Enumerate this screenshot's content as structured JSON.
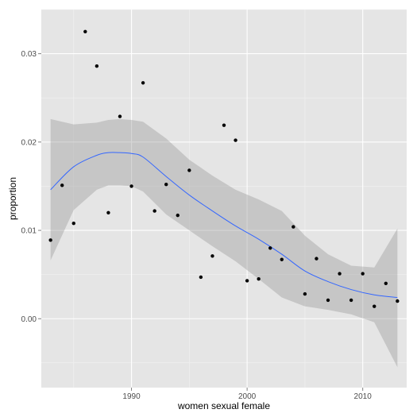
{
  "chart_data": {
    "type": "scatter",
    "title": "",
    "xlabel": "women sexual female",
    "ylabel": "proportion",
    "xlim": [
      1982.2,
      2013.8
    ],
    "ylim": [
      -0.0078,
      0.035
    ],
    "x_ticks": [
      1990,
      2000,
      2010
    ],
    "x_tick_labels": [
      "1990",
      "2000",
      "2010"
    ],
    "y_ticks": [
      0.0,
      0.01,
      0.02,
      0.03
    ],
    "y_tick_labels": [
      "0.00",
      "0.01",
      "0.02",
      "0.03"
    ],
    "grid": true,
    "legend": "none",
    "colors": {
      "panel": "#e5e5e5",
      "grid": "#ffffff",
      "points": "#000000",
      "smooth_line": "#3366ff",
      "ribbon": "#999999"
    },
    "points": [
      {
        "x": 1983,
        "y": 0.0089
      },
      {
        "x": 1984,
        "y": 0.0151
      },
      {
        "x": 1985,
        "y": 0.0108
      },
      {
        "x": 1986,
        "y": 0.0325
      },
      {
        "x": 1987,
        "y": 0.0286
      },
      {
        "x": 1988,
        "y": 0.012
      },
      {
        "x": 1989,
        "y": 0.0229
      },
      {
        "x": 1990,
        "y": 0.015
      },
      {
        "x": 1991,
        "y": 0.0267
      },
      {
        "x": 1992,
        "y": 0.0122
      },
      {
        "x": 1993,
        "y": 0.0152
      },
      {
        "x": 1994,
        "y": 0.0117
      },
      {
        "x": 1995,
        "y": 0.0168
      },
      {
        "x": 1996,
        "y": 0.0047
      },
      {
        "x": 1997,
        "y": 0.0071
      },
      {
        "x": 1998,
        "y": 0.0219
      },
      {
        "x": 1999,
        "y": 0.0202
      },
      {
        "x": 2000,
        "y": 0.0043
      },
      {
        "x": 2001,
        "y": 0.0045
      },
      {
        "x": 2002,
        "y": 0.008
      },
      {
        "x": 2003,
        "y": 0.0067
      },
      {
        "x": 2004,
        "y": 0.0104
      },
      {
        "x": 2005,
        "y": 0.0028
      },
      {
        "x": 2006,
        "y": 0.0068
      },
      {
        "x": 2007,
        "y": 0.0021
      },
      {
        "x": 2008,
        "y": 0.0051
      },
      {
        "x": 2009,
        "y": 0.0021
      },
      {
        "x": 2010,
        "y": 0.0051
      },
      {
        "x": 2011,
        "y": 0.0014
      },
      {
        "x": 2012,
        "y": 0.004
      },
      {
        "x": 2013,
        "y": 0.002
      }
    ],
    "smooth": {
      "x": [
        1983,
        1985,
        1987,
        1988,
        1989,
        1990,
        1991,
        1993,
        1995,
        1997,
        1999,
        2001,
        2003,
        2005,
        2007,
        2009,
        2011,
        2013
      ],
      "y": [
        0.0146,
        0.0172,
        0.0185,
        0.0188,
        0.0188,
        0.0187,
        0.0183,
        0.0161,
        0.014,
        0.0122,
        0.0105,
        0.009,
        0.0073,
        0.0054,
        0.0042,
        0.0033,
        0.0027,
        0.0024
      ],
      "upper": [
        0.0226,
        0.022,
        0.0222,
        0.0225,
        0.0226,
        0.0225,
        0.0223,
        0.0204,
        0.018,
        0.0162,
        0.0146,
        0.0135,
        0.0122,
        0.0094,
        0.0073,
        0.006,
        0.0058,
        0.0102
      ],
      "lower": [
        0.0066,
        0.0123,
        0.0146,
        0.0151,
        0.0151,
        0.015,
        0.0144,
        0.0118,
        0.01,
        0.0082,
        0.0065,
        0.0045,
        0.0024,
        0.0014,
        0.001,
        0.0005,
        -0.0004,
        -0.0055
      ]
    }
  }
}
